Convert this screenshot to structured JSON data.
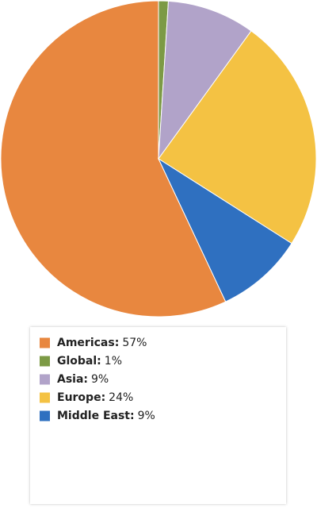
{
  "chart_data": {
    "type": "pie",
    "categories": [
      "Americas:",
      "Global:",
      "Asia:",
      "Europe:",
      "Middle East:"
    ],
    "values": [
      57,
      1,
      9,
      24,
      9
    ],
    "value_labels": [
      "57%",
      "1%",
      "9%",
      "24%",
      "9%"
    ],
    "colors": [
      "#e8873f",
      "#7c9a45",
      "#b1a3c9",
      "#f4c243",
      "#2f70c0"
    ],
    "legend": "bottom"
  }
}
